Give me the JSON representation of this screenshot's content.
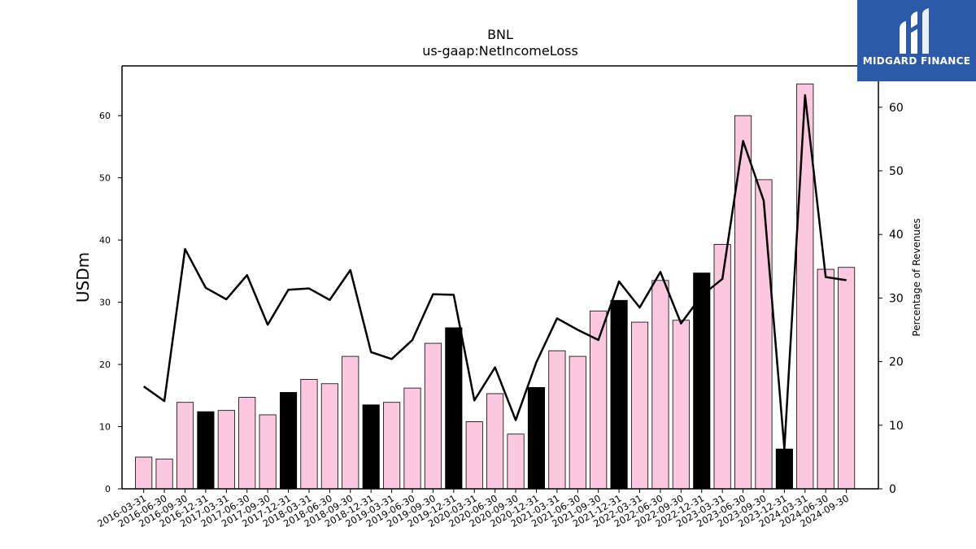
{
  "brand": {
    "name": "MIDGARD FINANCE",
    "bg_color": "#2d5aa8"
  },
  "chart_data": {
    "type": "bar",
    "title": "BNL",
    "subtitle": "us-gaap:NetIncomeLoss",
    "ylabel": "USDm",
    "y2label": "Percentage of Revenues",
    "ylim": [
      0,
      68
    ],
    "y2lim": [
      0,
      66.5
    ],
    "yticks": [
      0,
      10,
      20,
      30,
      40,
      50,
      60
    ],
    "y2ticks": [
      0,
      10,
      20,
      30,
      40,
      50,
      60
    ],
    "categories": [
      "2016-03-31",
      "2016-06-30",
      "2016-09-30",
      "2016-12-31",
      "2017-03-31",
      "2017-06-30",
      "2017-09-30",
      "2017-12-31",
      "2018-03-31",
      "2018-06-30",
      "2018-09-30",
      "2018-12-31",
      "2019-03-31",
      "2019-06-30",
      "2019-09-30",
      "2019-12-31",
      "2020-03-31",
      "2020-06-30",
      "2020-09-30",
      "2020-12-31",
      "2021-03-31",
      "2021-06-30",
      "2021-09-30",
      "2021-12-31",
      "2022-03-31",
      "2022-06-30",
      "2022-09-30",
      "2022-12-31",
      "2023-03-31",
      "2023-06-30",
      "2023-09-30",
      "2023-12-31",
      "2024-03-31",
      "2024-06-30",
      "2024-09-30"
    ],
    "series": [
      {
        "type": "bar",
        "values": [
          5.1,
          4.8,
          13.9,
          12.4,
          12.6,
          14.7,
          11.9,
          15.5,
          17.6,
          16.9,
          21.3,
          13.5,
          13.9,
          16.2,
          23.4,
          25.9,
          10.8,
          15.3,
          8.8,
          16.3,
          22.2,
          21.3,
          28.6,
          30.3,
          26.8,
          33.5,
          27.1,
          34.7,
          39.3,
          60.0,
          49.7,
          6.4,
          65.1,
          35.3,
          35.6
        ],
        "highlight": [
          false,
          false,
          false,
          true,
          false,
          false,
          false,
          true,
          false,
          false,
          false,
          true,
          false,
          false,
          false,
          true,
          false,
          false,
          false,
          true,
          false,
          false,
          false,
          true,
          false,
          false,
          false,
          true,
          false,
          false,
          false,
          true,
          false,
          false,
          false
        ],
        "color": "#fbc8e0",
        "highlight_color": "#000000"
      },
      {
        "type": "line",
        "axis": "right",
        "values": [
          16.1,
          13.8,
          37.7,
          31.6,
          29.8,
          33.6,
          25.8,
          31.3,
          31.5,
          29.7,
          34.4,
          21.5,
          20.4,
          23.4,
          30.6,
          30.5,
          13.9,
          19.1,
          10.8,
          19.9,
          26.8,
          25.0,
          23.4,
          32.6,
          28.5,
          34.1,
          26.0,
          30.4,
          33.0,
          54.7,
          45.3,
          6.3,
          61.9,
          33.3,
          32.8
        ],
        "color": "#000000"
      }
    ]
  }
}
